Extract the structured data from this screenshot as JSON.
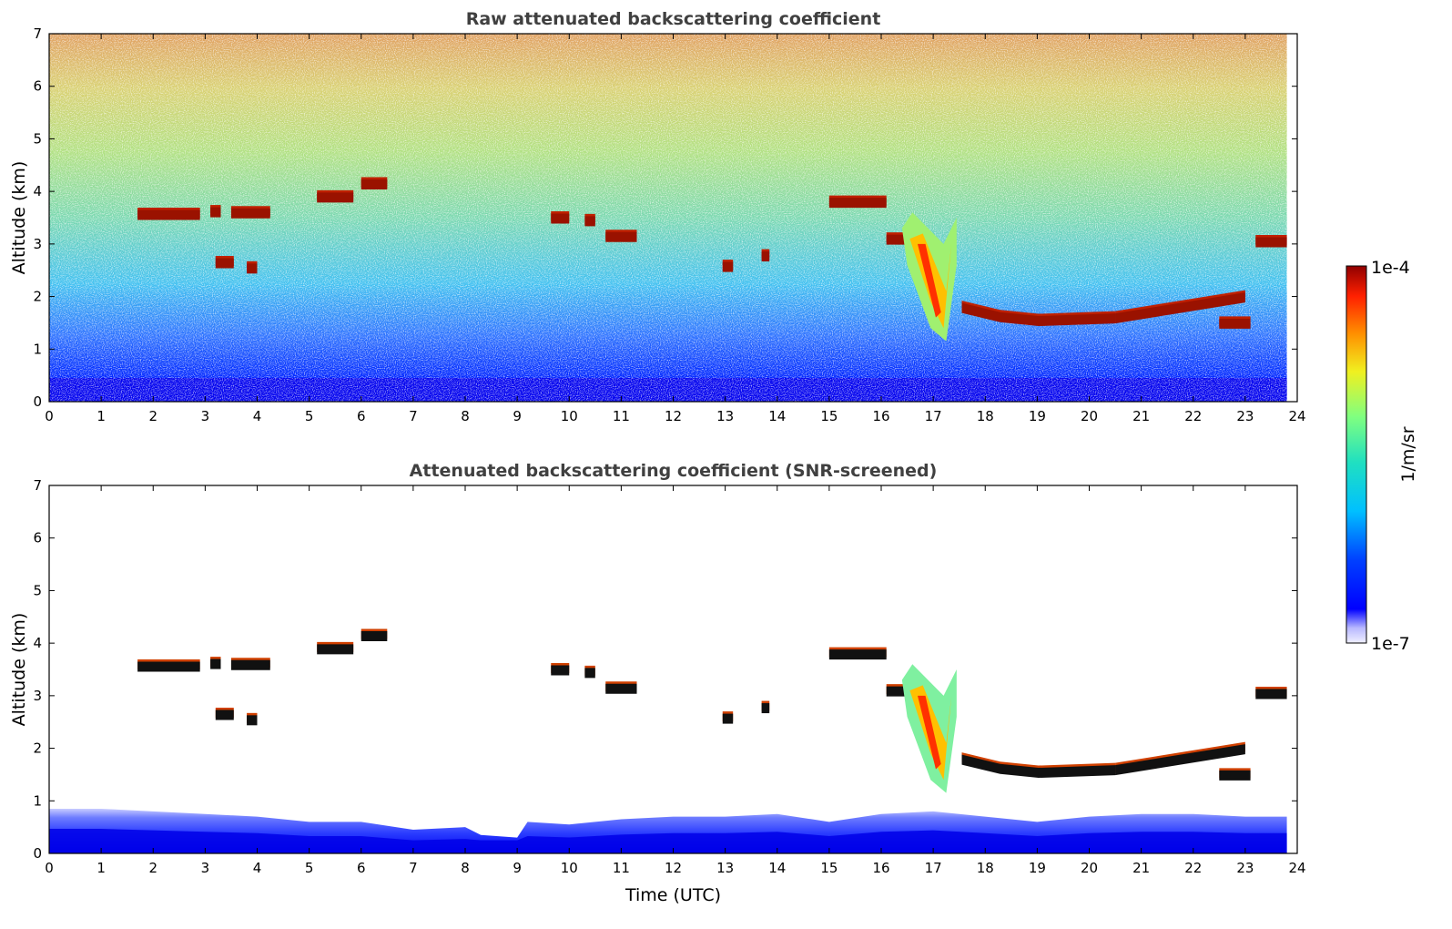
{
  "chart_data": [
    {
      "type": "heatmap",
      "title": "Raw attenuated backscattering coefficient",
      "xlabel": "",
      "ylabel": "Altitude (km)",
      "xlim": [
        0,
        24
      ],
      "ylim": [
        0,
        7
      ],
      "xticks": [
        "0",
        "1",
        "2",
        "3",
        "4",
        "5",
        "6",
        "7",
        "8",
        "9",
        "10",
        "11",
        "12",
        "13",
        "14",
        "15",
        "16",
        "17",
        "18",
        "19",
        "20",
        "21",
        "22",
        "23",
        "24"
      ],
      "yticks": [
        "0",
        "1",
        "2",
        "3",
        "4",
        "5",
        "6",
        "7"
      ],
      "data_end_hour": 23.8,
      "colormap": "jet (log scale)",
      "features": [
        {
          "kind": "cloud_layer",
          "t_start": 1.7,
          "t_end": 2.9,
          "alt_km": 3.57
        },
        {
          "kind": "cloud_layer",
          "t_start": 3.1,
          "t_end": 3.3,
          "alt_km": 3.62
        },
        {
          "kind": "cloud_layer",
          "t_start": 3.5,
          "t_end": 4.25,
          "alt_km": 3.6
        },
        {
          "kind": "cloud_layer",
          "t_start": 3.2,
          "t_end": 3.55,
          "alt_km": 2.65
        },
        {
          "kind": "cloud_layer",
          "t_start": 3.8,
          "t_end": 4.0,
          "alt_km": 2.55
        },
        {
          "kind": "cloud_layer",
          "t_start": 5.15,
          "t_end": 5.85,
          "alt_km": 3.9
        },
        {
          "kind": "cloud_layer",
          "t_start": 6.0,
          "t_end": 6.5,
          "alt_km": 4.15
        },
        {
          "kind": "cloud_layer",
          "t_start": 9.65,
          "t_end": 10.0,
          "alt_km": 3.5
        },
        {
          "kind": "cloud_layer",
          "t_start": 10.3,
          "t_end": 10.5,
          "alt_km": 3.45
        },
        {
          "kind": "cloud_layer",
          "t_start": 10.7,
          "t_end": 11.3,
          "alt_km": 3.15
        },
        {
          "kind": "cloud_layer",
          "t_start": 12.95,
          "t_end": 13.15,
          "alt_km": 2.58
        },
        {
          "kind": "cloud_layer",
          "t_start": 13.7,
          "t_end": 13.85,
          "alt_km": 2.78
        },
        {
          "kind": "cloud_layer",
          "t_start": 15.0,
          "t_end": 16.1,
          "alt_km": 3.8
        },
        {
          "kind": "cloud_layer",
          "t_start": 16.1,
          "t_end": 16.9,
          "alt_km": 3.1
        },
        {
          "kind": "precipitation_fall_streak",
          "t_start": 16.4,
          "t_end": 17.45,
          "alt_top_km": 3.6,
          "alt_bottom_km": 1.15
        },
        {
          "kind": "cloud_layer",
          "t_start": 17.55,
          "t_end": 20.5,
          "alt_start_km": 1.8,
          "alt_mid_km": 1.55,
          "alt_end_km": 1.6
        },
        {
          "kind": "cloud_layer",
          "t_start": 20.5,
          "t_end": 23.0,
          "alt_start_km": 1.6,
          "alt_end_km": 2.0
        },
        {
          "kind": "cloud_layer",
          "t_start": 22.5,
          "t_end": 23.1,
          "alt_km": 1.5
        },
        {
          "kind": "cloud_layer",
          "t_start": 23.2,
          "t_end": 23.8,
          "alt_km": 3.05
        }
      ]
    },
    {
      "type": "heatmap",
      "title": "Attenuated backscattering coefficient (SNR-screened)",
      "xlabel": "Time (UTC)",
      "ylabel": "Altitude (km)",
      "xlim": [
        0,
        24
      ],
      "ylim": [
        0,
        7
      ],
      "xticks": [
        "0",
        "1",
        "2",
        "3",
        "4",
        "5",
        "6",
        "7",
        "8",
        "9",
        "10",
        "11",
        "12",
        "13",
        "14",
        "15",
        "16",
        "17",
        "18",
        "19",
        "20",
        "21",
        "22",
        "23",
        "24"
      ],
      "yticks": [
        "0",
        "1",
        "2",
        "3",
        "4",
        "5",
        "6",
        "7"
      ],
      "data_end_hour": 23.8,
      "colormap": "jet (log scale)",
      "boundary_layer_top_km": [
        [
          0,
          0.85
        ],
        [
          1,
          0.85
        ],
        [
          2,
          0.8
        ],
        [
          3,
          0.75
        ],
        [
          4,
          0.7
        ],
        [
          5,
          0.6
        ],
        [
          6,
          0.6
        ],
        [
          7,
          0.45
        ],
        [
          8,
          0.5
        ],
        [
          8.3,
          0.35
        ],
        [
          9,
          0.3
        ],
        [
          9.2,
          0.6
        ],
        [
          10,
          0.55
        ],
        [
          11,
          0.65
        ],
        [
          12,
          0.7
        ],
        [
          13,
          0.7
        ],
        [
          14,
          0.75
        ],
        [
          15,
          0.6
        ],
        [
          16,
          0.75
        ],
        [
          17,
          0.8
        ],
        [
          18,
          0.7
        ],
        [
          19,
          0.6
        ],
        [
          20,
          0.7
        ],
        [
          21,
          0.75
        ],
        [
          22,
          0.75
        ],
        [
          23,
          0.7
        ],
        [
          23.8,
          0.7
        ]
      ]
    }
  ],
  "colorbar": {
    "label": "1/m/sr",
    "max_label": "1e-4",
    "min_label": "1e-7",
    "min": 1e-07,
    "max": 0.0001,
    "scale": "log"
  }
}
